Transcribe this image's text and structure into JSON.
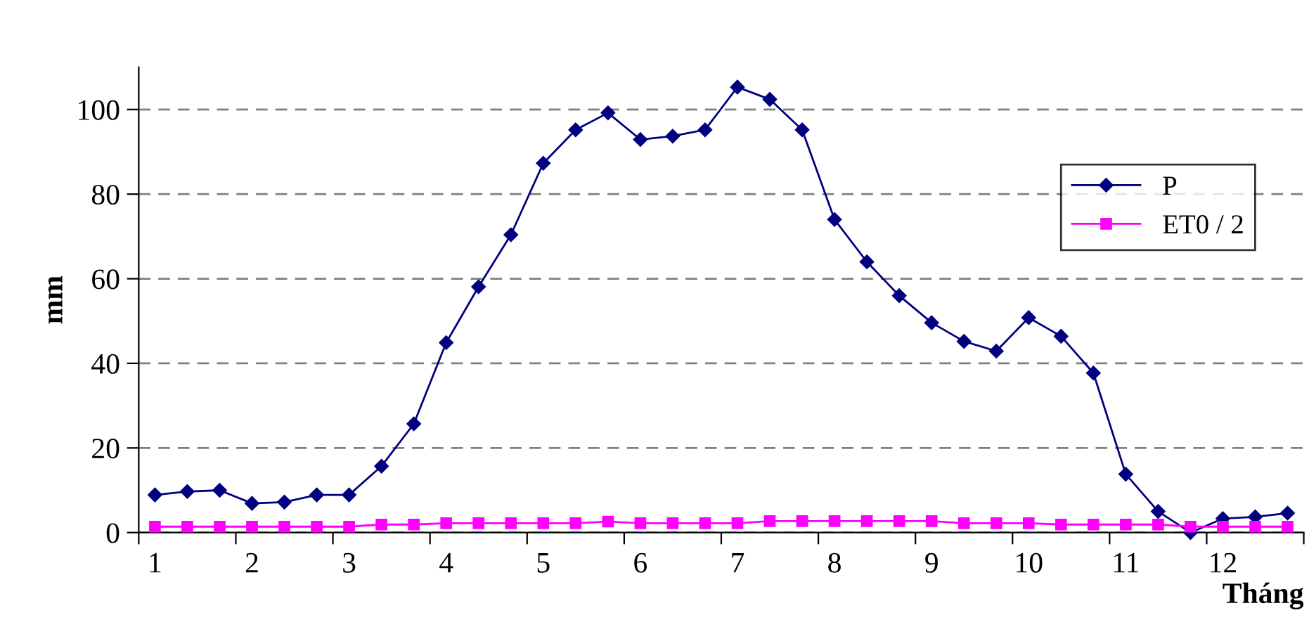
{
  "chart_data": {
    "type": "line",
    "xlabel": "Tháng",
    "ylabel": "mm",
    "categories": [
      "1",
      null,
      null,
      "2",
      null,
      null,
      "3",
      null,
      null,
      "4",
      null,
      null,
      "5",
      null,
      null,
      "6",
      null,
      null,
      "7",
      null,
      null,
      "8",
      null,
      null,
      "9",
      null,
      null,
      "10",
      null,
      null,
      "11",
      null,
      null,
      "12",
      null,
      null
    ],
    "series": [
      {
        "name": "P",
        "color": "#000080",
        "marker": "diamond",
        "values": [
          8.9,
          9.7,
          10,
          6.9,
          7.2,
          8.9,
          8.9,
          15.7,
          25.7,
          44.9,
          58.1,
          70.4,
          87.3,
          95.2,
          99.2,
          92.9,
          93.7,
          95.2,
          105.3,
          102.4,
          95.2,
          74,
          64,
          56,
          49.6,
          45.2,
          42.9,
          50.8,
          46.4,
          37.7,
          13.8,
          5,
          0,
          3.3,
          3.7,
          4.6
        ]
      },
      {
        "name": "ET0 / 2",
        "color": "#ff00ff",
        "marker": "square",
        "values": [
          1.4,
          1.4,
          1.4,
          1.4,
          1.4,
          1.4,
          1.4,
          1.9,
          1.9,
          2.2,
          2.2,
          2.2,
          2.2,
          2.2,
          2.6,
          2.2,
          2.2,
          2.2,
          2.2,
          2.7,
          2.7,
          2.7,
          2.7,
          2.7,
          2.7,
          2.2,
          2.2,
          2.2,
          1.9,
          1.9,
          1.9,
          1.9,
          1.4,
          1.4,
          1.4,
          1.4
        ]
      }
    ],
    "ylim": [
      0,
      110
    ],
    "yticks": [
      0,
      20,
      40,
      60,
      80,
      100
    ],
    "grid": "y",
    "legend": "top right",
    "line_style": "solid"
  }
}
